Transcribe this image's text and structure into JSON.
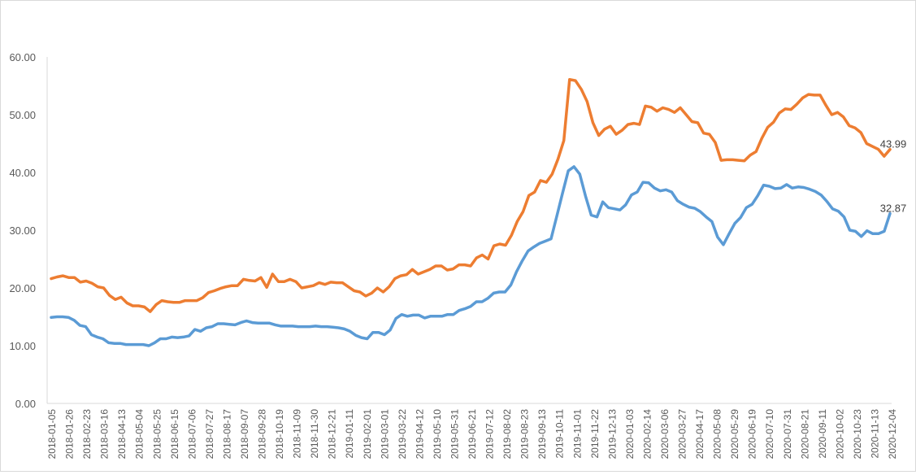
{
  "chart_data": {
    "type": "line",
    "title": "",
    "xlabel": "",
    "ylabel": "",
    "ylim": [
      0,
      60
    ],
    "y_ticks": [
      "0.00",
      "10.00",
      "20.00",
      "30.00",
      "40.00",
      "50.00",
      "60.00"
    ],
    "grid": false,
    "legend": "none",
    "x_tick_labels": [
      "2018-01-05",
      "2018-01-26",
      "2018-02-23",
      "2018-03-16",
      "2018-04-13",
      "2018-05-04",
      "2018-05-25",
      "2018-06-15",
      "2018-07-06",
      "2018-07-27",
      "2018-08-17",
      "2018-09-07",
      "2018-09-28",
      "2018-10-19",
      "2018-11-09",
      "2018-11-30",
      "2018-12-21",
      "2019-01-11",
      "2019-02-01",
      "2019-03-01",
      "2019-03-22",
      "2019-04-12",
      "2019-05-10",
      "2019-05-31",
      "2019-06-21",
      "2019-07-12",
      "2019-08-02",
      "2019-08-23",
      "2019-09-13",
      "2019-10-11",
      "2019-11-01",
      "2019-11-22",
      "2019-12-13",
      "2020-01-03",
      "2020-02-14",
      "2020-03-06",
      "2020-03-27",
      "2020-04-17",
      "2020-05-08",
      "2020-05-29",
      "2020-06-19",
      "2020-07-10",
      "2020-07-31",
      "2020-08-21",
      "2020-09-11",
      "2020-10-02",
      "2020-10-23",
      "2020-11-13",
      "2020-12-04"
    ],
    "series": [
      {
        "color": "#ed7d31",
        "end_label": "43.99",
        "values": [
          21.6,
          21.9,
          22.1,
          21.8,
          21.8,
          21.0,
          21.2,
          20.8,
          20.2,
          20.0,
          18.7,
          18.0,
          18.4,
          17.4,
          16.9,
          16.9,
          16.7,
          15.9,
          17.1,
          17.8,
          17.6,
          17.5,
          17.5,
          17.8,
          17.8,
          17.8,
          18.3,
          19.2,
          19.5,
          19.9,
          20.2,
          20.4,
          20.4,
          21.5,
          21.3,
          21.2,
          21.8,
          20.1,
          22.4,
          21.1,
          21.1,
          21.5,
          21.1,
          20.0,
          20.2,
          20.4,
          20.9,
          20.6,
          21.0,
          20.9,
          20.9,
          20.2,
          19.5,
          19.3,
          18.6,
          19.1,
          20.0,
          19.3,
          20.2,
          21.6,
          22.1,
          22.3,
          23.2,
          22.4,
          22.8,
          23.2,
          23.8,
          23.8,
          23.1,
          23.3,
          24.0,
          24.0,
          23.8,
          25.2,
          25.7,
          25.0,
          27.3,
          27.6,
          27.4,
          29.1,
          31.5,
          33.2,
          36.0,
          36.6,
          38.6,
          38.3,
          39.7,
          42.3,
          45.5,
          56.1,
          55.9,
          54.4,
          52.3,
          48.6,
          46.4,
          47.5,
          48.0,
          46.6,
          47.3,
          48.3,
          48.5,
          48.3,
          51.5,
          51.3,
          50.6,
          51.2,
          50.9,
          50.4,
          51.2,
          50.0,
          48.8,
          48.6,
          46.8,
          46.6,
          45.2,
          42.1,
          42.2,
          42.2,
          42.1,
          42.0,
          43.0,
          43.6,
          45.9,
          47.8,
          48.7,
          50.3,
          51.0,
          50.9,
          51.8,
          52.9,
          53.5,
          53.4,
          53.4,
          51.6,
          50.0,
          50.4,
          49.6,
          48.1,
          47.7,
          46.9,
          45.0,
          44.5,
          44.0,
          42.8,
          43.99
        ]
      },
      {
        "color": "#5b9bd5",
        "end_label": "32.87",
        "values": [
          14.9,
          15.0,
          15.0,
          14.9,
          14.4,
          13.5,
          13.3,
          11.9,
          11.5,
          11.2,
          10.5,
          10.4,
          10.4,
          10.2,
          10.2,
          10.2,
          10.2,
          10.0,
          10.5,
          11.2,
          11.2,
          11.5,
          11.4,
          11.5,
          11.7,
          12.8,
          12.5,
          13.1,
          13.3,
          13.8,
          13.8,
          13.7,
          13.6,
          14.0,
          14.3,
          14.0,
          13.9,
          13.9,
          13.9,
          13.6,
          13.4,
          13.4,
          13.4,
          13.3,
          13.3,
          13.3,
          13.4,
          13.3,
          13.3,
          13.2,
          13.1,
          12.9,
          12.5,
          11.8,
          11.4,
          11.2,
          12.3,
          12.3,
          11.9,
          12.7,
          14.7,
          15.4,
          15.1,
          15.3,
          15.3,
          14.8,
          15.1,
          15.1,
          15.1,
          15.4,
          15.4,
          16.1,
          16.4,
          16.8,
          17.6,
          17.6,
          18.2,
          19.1,
          19.3,
          19.3,
          20.5,
          22.8,
          24.7,
          26.4,
          27.1,
          27.7,
          28.1,
          28.5,
          32.4,
          36.4,
          40.3,
          41.0,
          39.7,
          35.9,
          32.6,
          32.3,
          34.9,
          33.9,
          33.7,
          33.5,
          34.4,
          36.1,
          36.6,
          38.3,
          38.2,
          37.3,
          36.8,
          37.0,
          36.6,
          35.1,
          34.5,
          34.0,
          33.8,
          33.2,
          32.3,
          31.5,
          28.8,
          27.5,
          29.4,
          31.2,
          32.2,
          33.9,
          34.5,
          36.0,
          37.8,
          37.6,
          37.2,
          37.3,
          37.9,
          37.3,
          37.5,
          37.4,
          37.1,
          36.7,
          36.1,
          35.0,
          33.7,
          33.3,
          32.3,
          30.0,
          29.8,
          28.9,
          29.9,
          29.4,
          29.4,
          29.8,
          32.87
        ]
      }
    ]
  }
}
